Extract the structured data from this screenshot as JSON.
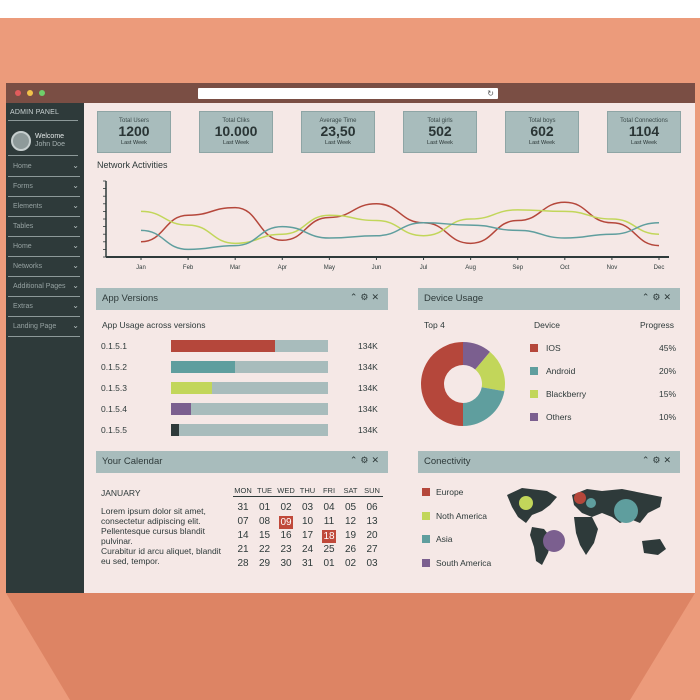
{
  "sidebar": {
    "title": "ADMIN PANEL",
    "welcome": "Welcome",
    "user": "John Doe",
    "items": [
      {
        "label": "Home"
      },
      {
        "label": "Forms"
      },
      {
        "label": "Elements"
      },
      {
        "label": "Tables"
      },
      {
        "label": "Home"
      },
      {
        "label": "Networks"
      },
      {
        "label": "Additional Pages"
      },
      {
        "label": "Extras"
      },
      {
        "label": "Landing Page"
      }
    ]
  },
  "stats": [
    {
      "label": "Total Users",
      "value": "1200",
      "sub": "Last Week"
    },
    {
      "label": "Total Cliks",
      "value": "10.000",
      "sub": "Last Week"
    },
    {
      "label": "Average Time",
      "value": "23,50",
      "sub": "Last Week"
    },
    {
      "label": "Total girls",
      "value": "502",
      "sub": "Last Week"
    },
    {
      "label": "Total boys",
      "value": "602",
      "sub": "Last Week"
    },
    {
      "label": "Total Connections",
      "value": "1104",
      "sub": "Last Week"
    }
  ],
  "network": {
    "title": "Network Activities",
    "chart_data": {
      "type": "line",
      "x": [
        "Jan",
        "Feb",
        "Mar",
        "Apr",
        "May",
        "Jun",
        "Jul",
        "Aug",
        "Sep",
        "Oct",
        "Nov",
        "Dec"
      ],
      "ylim": [
        0,
        100
      ],
      "series": [
        {
          "color": "#b5473b",
          "values": [
            20,
            55,
            65,
            22,
            52,
            70,
            45,
            18,
            48,
            72,
            45,
            15
          ]
        },
        {
          "color": "#c2d65a",
          "values": [
            60,
            42,
            18,
            30,
            55,
            48,
            28,
            50,
            62,
            60,
            50,
            30
          ]
        },
        {
          "color": "#5f9e9e",
          "values": [
            35,
            10,
            15,
            40,
            25,
            28,
            45,
            42,
            35,
            25,
            30,
            45
          ]
        }
      ]
    }
  },
  "app_versions": {
    "title": "App Versions",
    "subtitle": "App Usage across versions",
    "rows": [
      {
        "version": "0.1.5.1",
        "fill": 0.66,
        "color": "#b5473b",
        "count": "134K"
      },
      {
        "version": "0.1.5.2",
        "fill": 0.41,
        "color": "#5f9e9e",
        "count": "134K"
      },
      {
        "version": "0.1.5.3",
        "fill": 0.26,
        "color": "#c2d65a",
        "count": "134K"
      },
      {
        "version": "0.1.5.4",
        "fill": 0.13,
        "color": "#7b5f8f",
        "count": "134K"
      },
      {
        "version": "0.1.5.5",
        "fill": 0.05,
        "color": "#2e3a3a",
        "count": "134K"
      }
    ]
  },
  "device_usage": {
    "title": "Device Usage",
    "col_top": "Top 4",
    "col_device": "Device",
    "col_progress": "Progress",
    "chart_data": {
      "type": "pie",
      "items": [
        {
          "name": "IOS",
          "value": 45,
          "label": "45%",
          "color": "#b5473b"
        },
        {
          "name": "Android",
          "value": 20,
          "label": "20%",
          "color": "#5f9e9e"
        },
        {
          "name": "Blackberry",
          "value": 15,
          "label": "15%",
          "color": "#c2d65a"
        },
        {
          "name": "Others",
          "value": 10,
          "label": "10%",
          "color": "#7b5f8f"
        }
      ]
    }
  },
  "calendar": {
    "title": "Your Calendar",
    "month": "JANUARY",
    "text1": "Lorem ipsum dolor sit amet, consectetur adipiscing elit. Pellentesque cursus blandit pulvinar.",
    "text2": "Curabitur id arcu aliquet, blandit eu sed, tempor.",
    "days": [
      "MON",
      "TUE",
      "WED",
      "THU",
      "FRI",
      "SAT",
      "SUN"
    ],
    "weeks": [
      [
        "31",
        "01",
        "02",
        "03",
        "04",
        "05",
        "06"
      ],
      [
        "07",
        "08",
        "09",
        "10",
        "11",
        "12",
        "13"
      ],
      [
        "14",
        "15",
        "16",
        "17",
        "18",
        "19",
        "20"
      ],
      [
        "21",
        "22",
        "23",
        "24",
        "25",
        "26",
        "27"
      ],
      [
        "28",
        "29",
        "30",
        "31",
        "01",
        "02",
        "03"
      ]
    ],
    "highlighted": [
      "09",
      "18"
    ]
  },
  "connectivity": {
    "title": "Conectivity",
    "legend": [
      {
        "label": "Europe",
        "color": "#b5473b"
      },
      {
        "label": "Noth America",
        "color": "#c2d65a"
      },
      {
        "label": "Asia",
        "color": "#5f9e9e"
      },
      {
        "label": "South America",
        "color": "#7b5f8f"
      }
    ]
  },
  "colors": {
    "accent_red": "#b5473b",
    "accent_teal": "#5f9e9e",
    "accent_lime": "#c2d65a",
    "accent_purple": "#7b5f8f",
    "sidebar": "#2e3a3a",
    "panel_head": "#a8bcbc"
  }
}
